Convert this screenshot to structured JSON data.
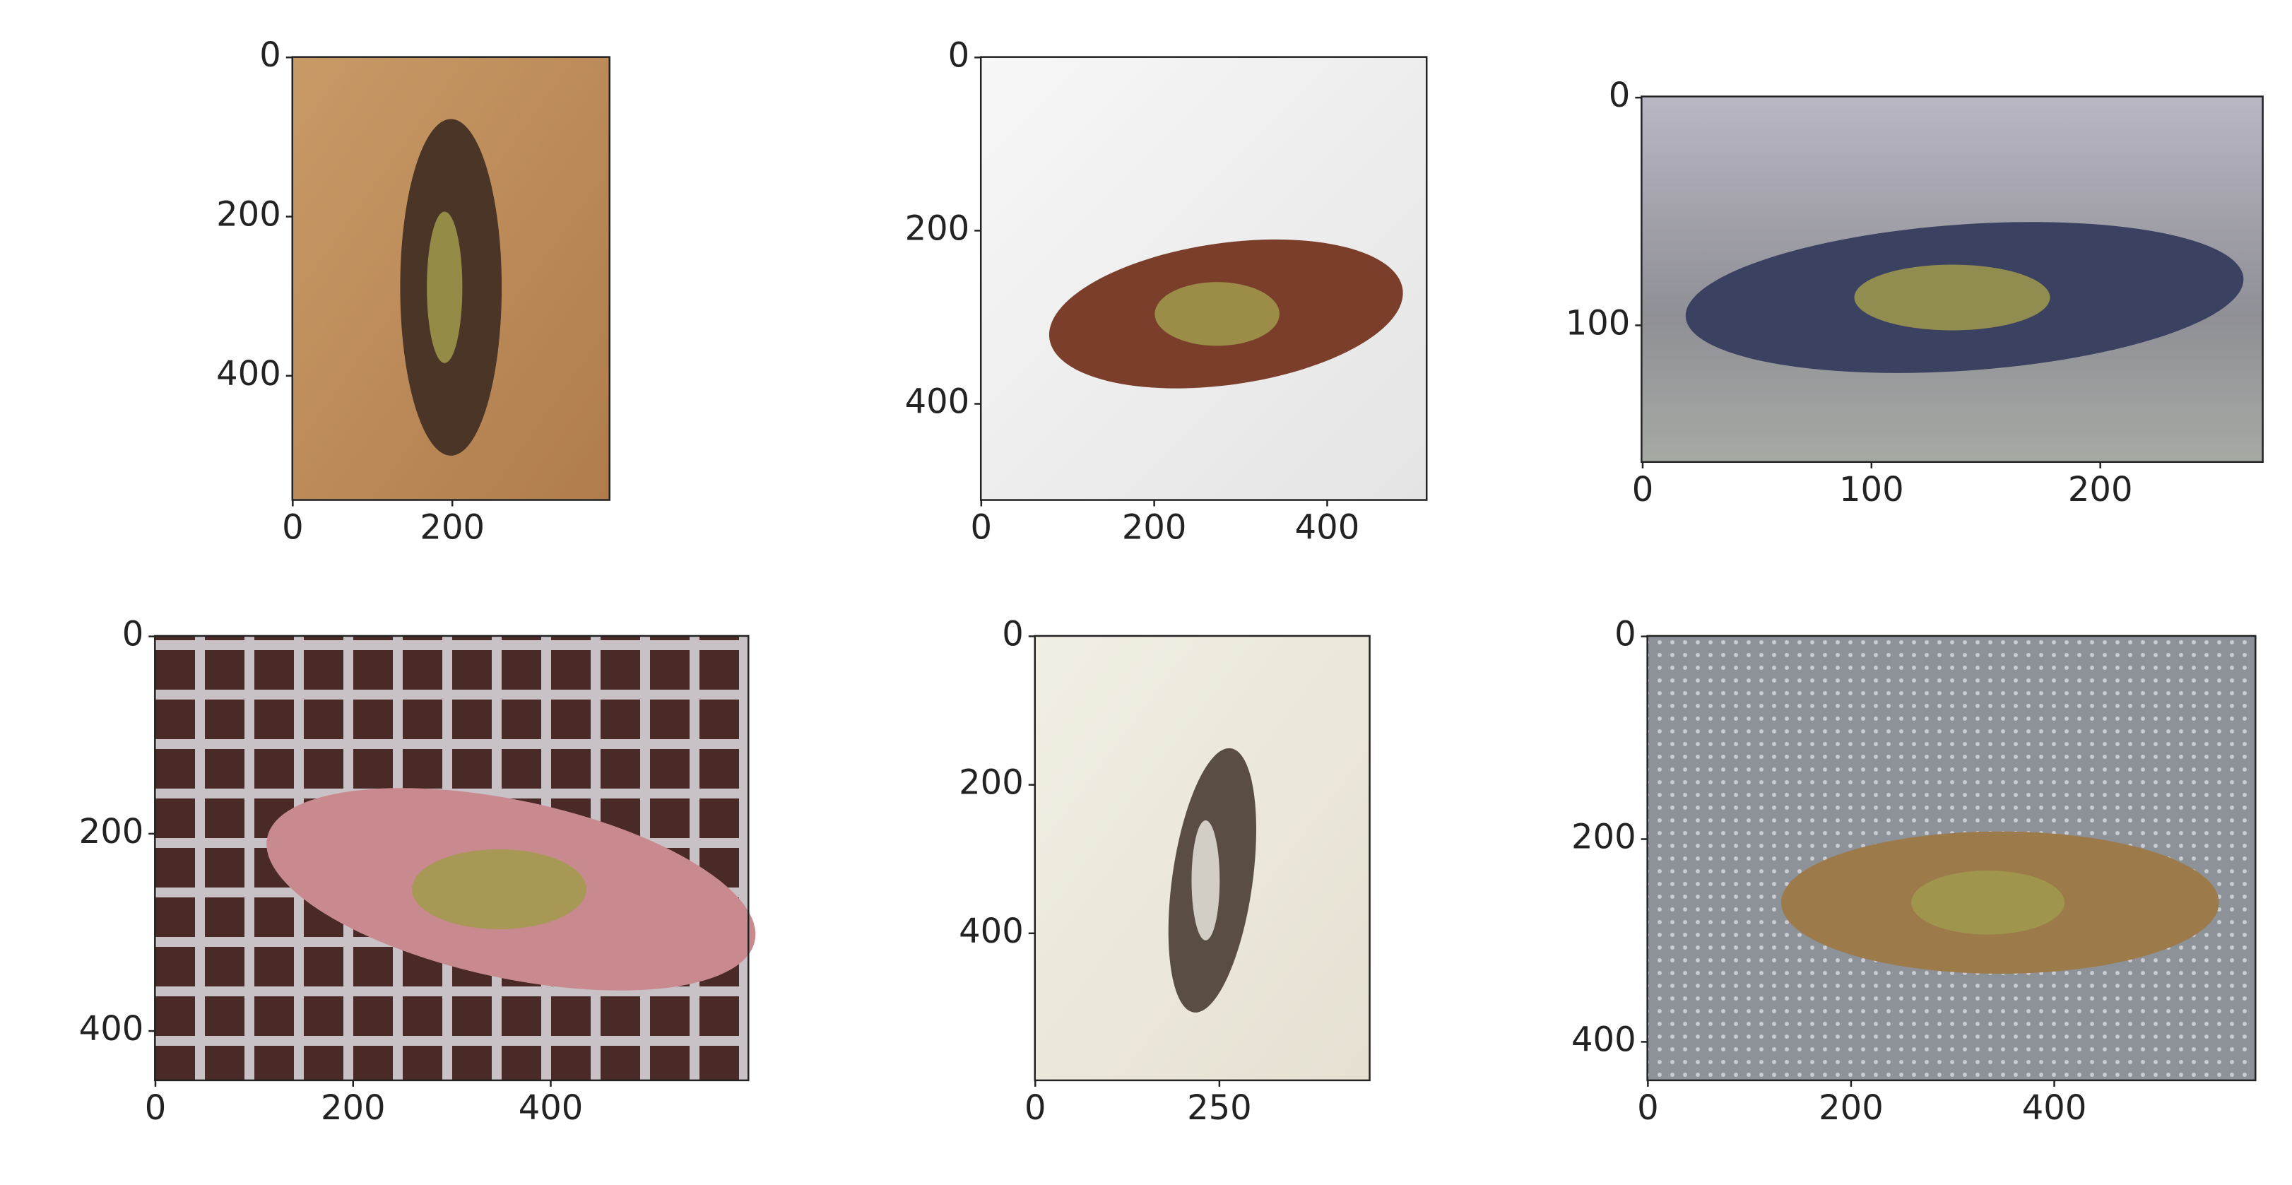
{
  "chart_data": [
    {
      "type": "image",
      "xlim": [
        -0.5,
        397
      ],
      "ylim": [
        556,
        -0.5
      ],
      "xticks": [
        0,
        200
      ],
      "yticks": [
        0,
        200,
        400
      ]
    },
    {
      "type": "image",
      "xlim": [
        -0.5,
        515
      ],
      "ylim": [
        511,
        -0.5
      ],
      "xticks": [
        0,
        200,
        400
      ],
      "yticks": [
        0,
        200,
        400
      ]
    },
    {
      "type": "image",
      "xlim": [
        -0.5,
        271
      ],
      "ylim": [
        160,
        -0.5
      ],
      "xticks": [
        0,
        100,
        200
      ],
      "yticks": [
        0,
        100
      ]
    },
    {
      "type": "image",
      "xlim": [
        -0.5,
        600
      ],
      "ylim": [
        450,
        -0.5
      ],
      "xticks": [
        0,
        200,
        400
      ],
      "yticks": [
        0,
        200,
        400
      ]
    },
    {
      "type": "image",
      "xlim": [
        -0.5,
        454
      ],
      "ylim": [
        598,
        -0.5
      ],
      "xticks": [
        0,
        250
      ],
      "yticks": [
        0,
        200,
        400
      ]
    },
    {
      "type": "image",
      "xlim": [
        -0.5,
        598
      ],
      "ylim": [
        438,
        -0.5
      ],
      "xticks": [
        0,
        200,
        400
      ],
      "yticks": [
        0,
        200,
        400
      ]
    }
  ]
}
